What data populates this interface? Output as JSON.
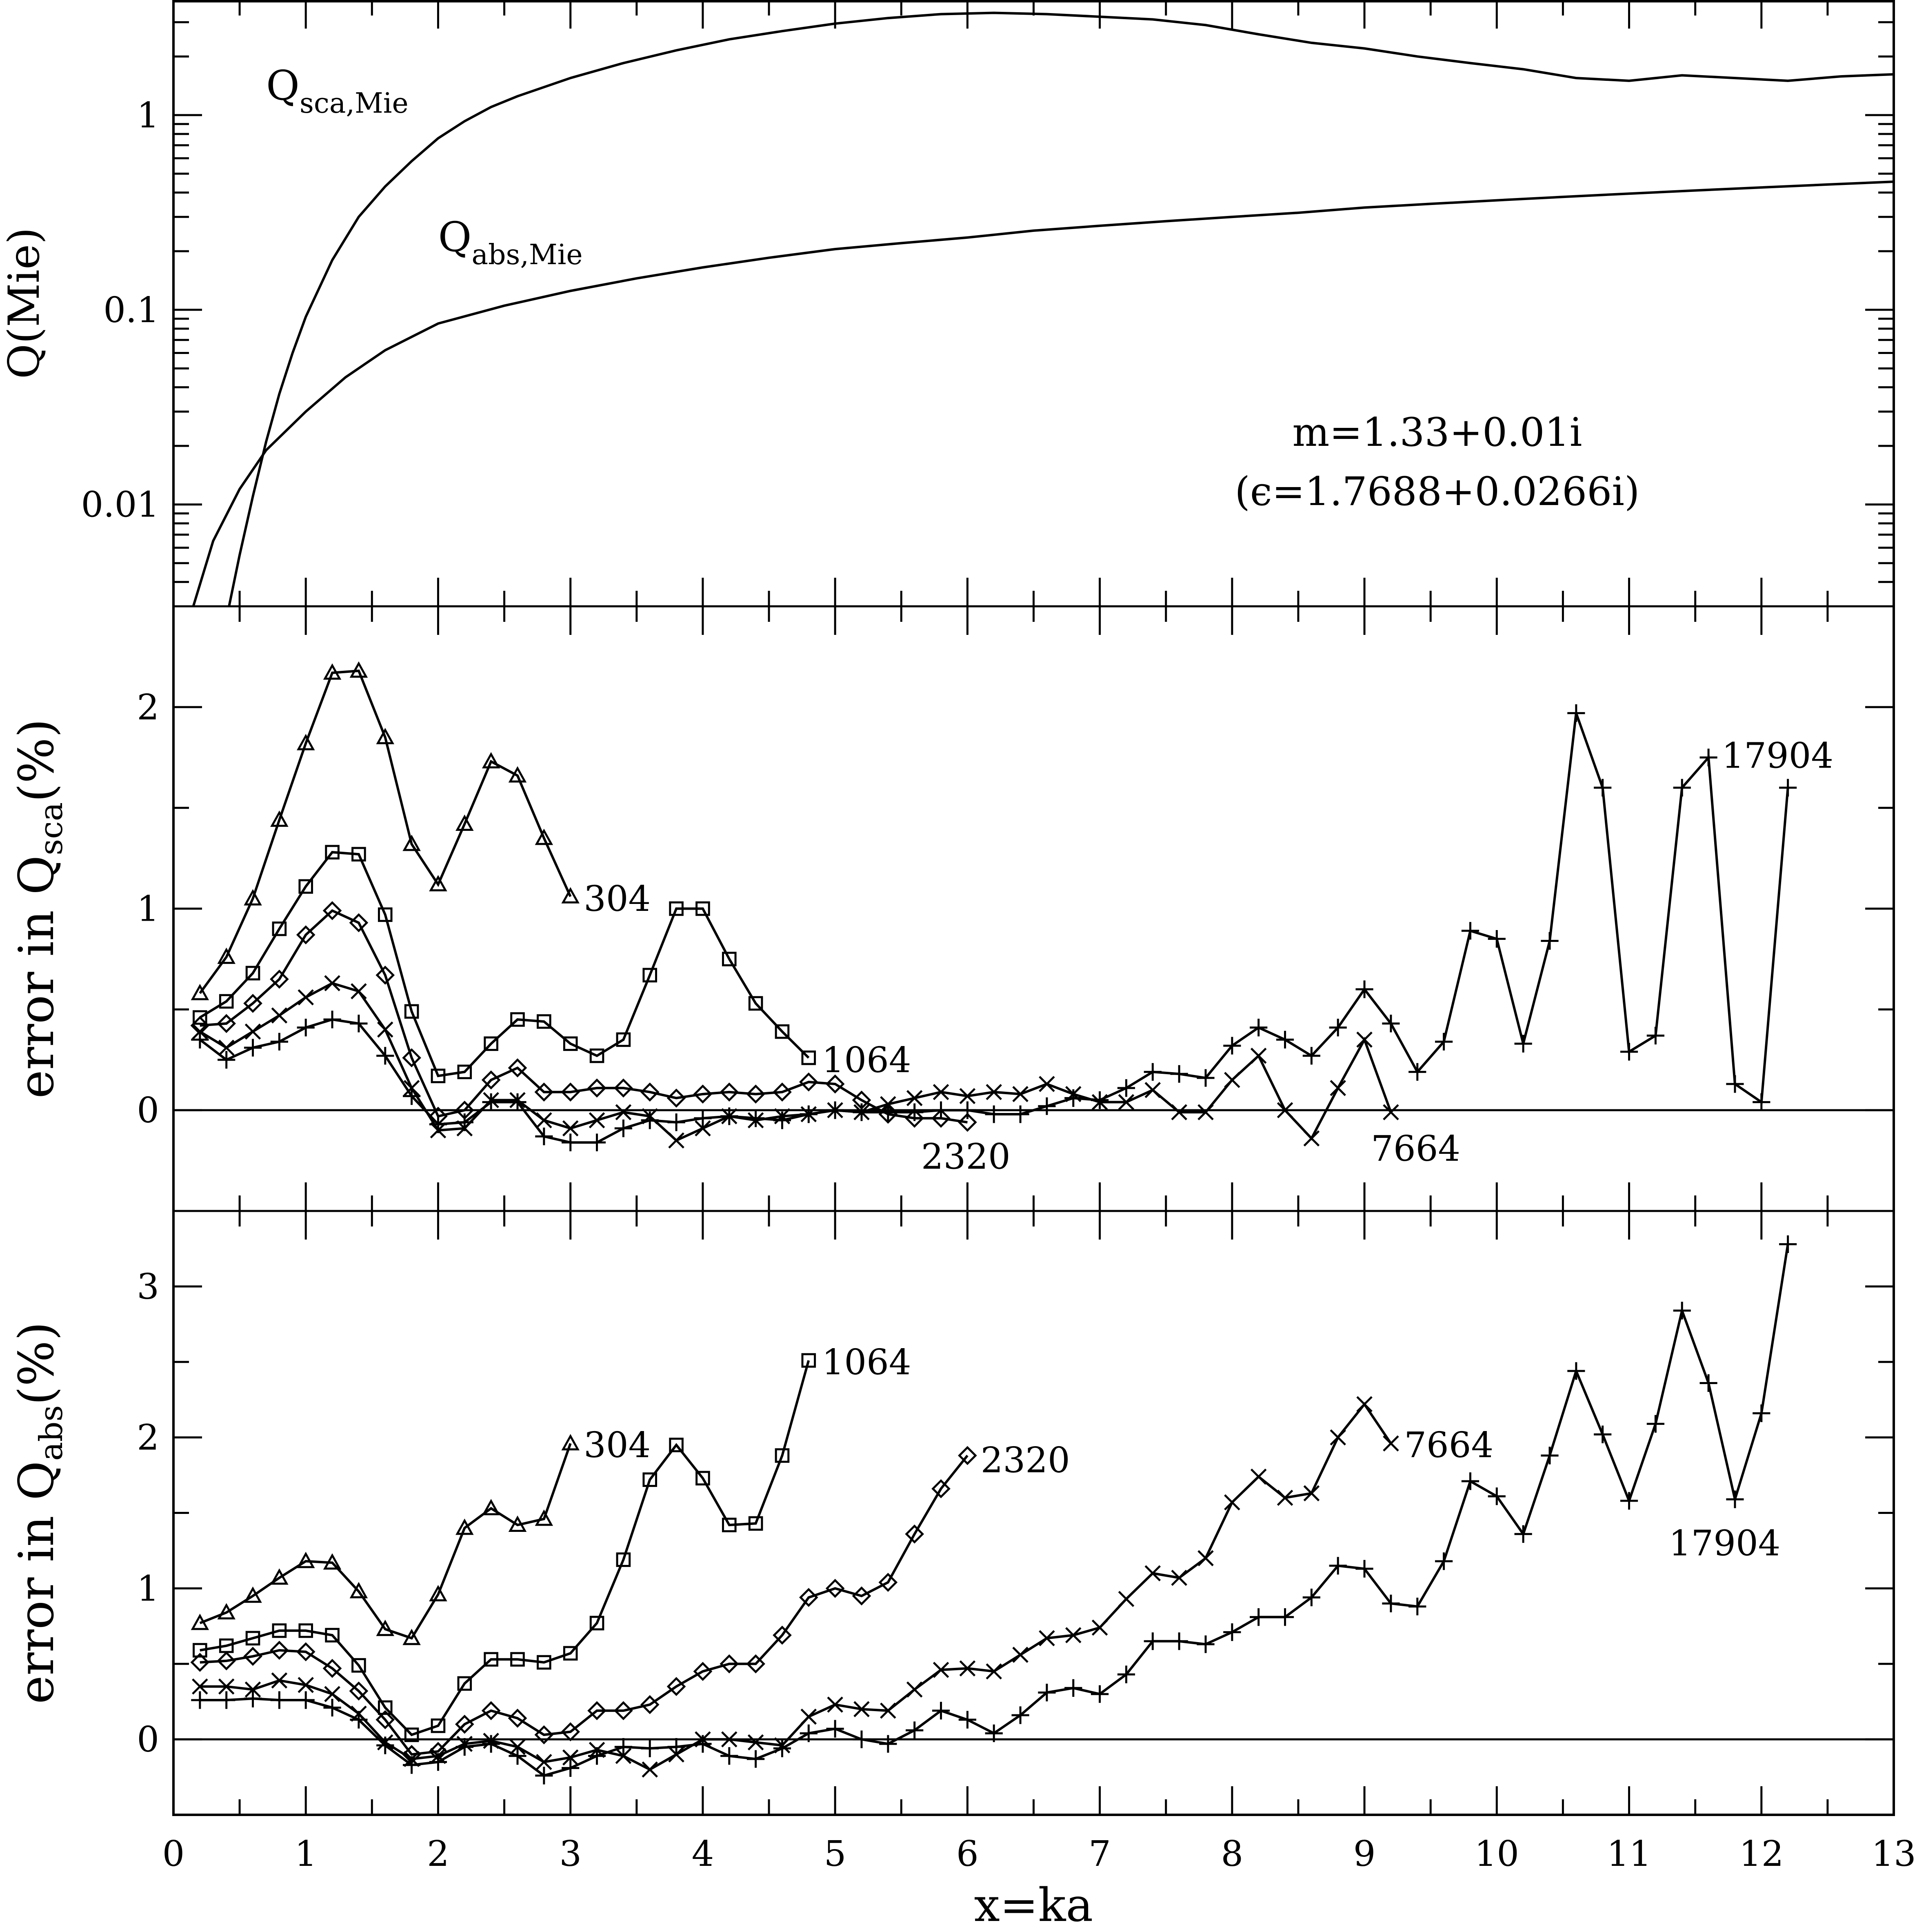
{
  "chart_data": [
    {
      "type": "line",
      "panel": "top",
      "ylabel": "Q(Mie)",
      "yscale": "log",
      "ylim": [
        0.003,
        3.9
      ],
      "xlim": [
        0,
        13
      ],
      "yticks": [
        {
          "value": 1,
          "label": "1"
        },
        {
          "value": 0.1,
          "label": "0.1"
        },
        {
          "value": 0.01,
          "label": "0.01"
        }
      ],
      "annotations": [
        {
          "text": "m=1.33+0.01i"
        },
        {
          "text": "(ϵ=1.7688+0.0266i)"
        }
      ],
      "series": [
        {
          "name": "Q_sca,Mie",
          "label_main": "Q",
          "label_sub": "sca,Mie",
          "x": [
            0.42,
            0.5,
            0.6,
            0.7,
            0.8,
            0.9,
            1.0,
            1.2,
            1.4,
            1.6,
            1.8,
            2.0,
            2.2,
            2.4,
            2.6,
            3.0,
            3.4,
            3.8,
            4.2,
            4.6,
            5.0,
            5.4,
            5.8,
            6.2,
            6.6,
            7.0,
            7.4,
            7.8,
            8.2,
            8.6,
            9.0,
            9.4,
            9.8,
            10.2,
            10.6,
            11.0,
            11.4,
            11.8,
            12.2,
            12.6,
            13.0
          ],
          "y": [
            0.003,
            0.0055,
            0.011,
            0.021,
            0.037,
            0.06,
            0.092,
            0.18,
            0.3,
            0.43,
            0.58,
            0.76,
            0.93,
            1.1,
            1.25,
            1.55,
            1.85,
            2.15,
            2.45,
            2.7,
            2.95,
            3.15,
            3.3,
            3.35,
            3.3,
            3.2,
            3.1,
            2.9,
            2.6,
            2.35,
            2.2,
            2.0,
            1.85,
            1.72,
            1.55,
            1.5,
            1.6,
            1.55,
            1.5,
            1.58,
            1.62
          ]
        },
        {
          "name": "Q_abs,Mie",
          "label_main": "Q",
          "label_sub": "abs,Mie",
          "x": [
            0.15,
            0.3,
            0.5,
            0.7,
            1.0,
            1.3,
            1.6,
            2.0,
            2.5,
            3.0,
            3.5,
            4.0,
            4.5,
            5.0,
            5.5,
            6.0,
            6.5,
            7.0,
            7.5,
            8.0,
            8.5,
            9.0,
            9.5,
            10.0,
            10.5,
            11.0,
            11.5,
            12.0,
            12.5,
            13.0
          ],
          "y": [
            0.003,
            0.0065,
            0.012,
            0.019,
            0.03,
            0.045,
            0.062,
            0.085,
            0.105,
            0.125,
            0.145,
            0.165,
            0.185,
            0.205,
            0.22,
            0.235,
            0.255,
            0.27,
            0.285,
            0.3,
            0.315,
            0.335,
            0.35,
            0.365,
            0.38,
            0.395,
            0.41,
            0.425,
            0.44,
            0.455
          ]
        }
      ]
    },
    {
      "type": "line",
      "panel": "middle",
      "ylabel_main": "error in Q",
      "ylabel_sub": "sca",
      "ylabel_tail": "(%)",
      "ylim": [
        -0.5,
        2.5
      ],
      "xlim": [
        0,
        13
      ],
      "yticks": [
        {
          "value": 0,
          "label": "0"
        },
        {
          "value": 1,
          "label": "1"
        },
        {
          "value": 2,
          "label": "2"
        }
      ],
      "series": [
        {
          "name": "304",
          "marker": "triangle",
          "label_x": 3.1,
          "label_y": 1.05,
          "x": [
            0.2,
            0.4,
            0.6,
            0.8,
            1.0,
            1.2,
            1.4,
            1.6,
            1.8,
            2.0,
            2.2,
            2.4,
            2.6,
            2.8,
            3.0
          ],
          "y": [
            0.58,
            0.76,
            1.05,
            1.44,
            1.82,
            2.17,
            2.18,
            1.85,
            1.32,
            1.12,
            1.42,
            1.73,
            1.66,
            1.35,
            1.06
          ]
        },
        {
          "name": "1064",
          "marker": "square",
          "label_x": 4.9,
          "label_y": 0.25,
          "x": [
            0.2,
            0.4,
            0.6,
            0.8,
            1.0,
            1.2,
            1.4,
            1.6,
            1.8,
            2.0,
            2.2,
            2.4,
            2.6,
            2.8,
            3.0,
            3.2,
            3.4,
            3.6,
            3.8,
            4.0,
            4.2,
            4.4,
            4.6,
            4.8
          ],
          "y": [
            0.46,
            0.54,
            0.68,
            0.9,
            1.11,
            1.28,
            1.27,
            0.97,
            0.49,
            0.17,
            0.19,
            0.33,
            0.45,
            0.44,
            0.33,
            0.27,
            0.35,
            0.67,
            1.0,
            1.0,
            0.75,
            0.53,
            0.39,
            0.26
          ]
        },
        {
          "name": "2320",
          "marker": "diamond",
          "label_x": 5.65,
          "label_y": -0.23,
          "x": [
            0.2,
            0.4,
            0.6,
            0.8,
            1.0,
            1.2,
            1.4,
            1.6,
            1.8,
            2.0,
            2.2,
            2.4,
            2.6,
            2.8,
            3.0,
            3.2,
            3.4,
            3.6,
            3.8,
            4.0,
            4.2,
            4.4,
            4.6,
            4.8,
            5.0,
            5.2,
            5.4,
            5.6,
            5.8,
            6.0
          ],
          "y": [
            0.42,
            0.43,
            0.53,
            0.65,
            0.87,
            0.99,
            0.93,
            0.67,
            0.26,
            -0.03,
            0.0,
            0.15,
            0.21,
            0.09,
            0.09,
            0.11,
            0.11,
            0.09,
            0.06,
            0.08,
            0.09,
            0.08,
            0.09,
            0.14,
            0.13,
            0.05,
            -0.02,
            -0.04,
            -0.04,
            -0.06
          ]
        },
        {
          "name": "7664",
          "marker": "cross",
          "label_x": 9.05,
          "label_y": -0.19,
          "x": [
            0.2,
            0.4,
            0.6,
            0.8,
            1.0,
            1.2,
            1.4,
            1.6,
            1.8,
            2.0,
            2.2,
            2.4,
            2.6,
            2.8,
            3.0,
            3.2,
            3.4,
            3.6,
            3.8,
            4.0,
            4.2,
            4.4,
            4.6,
            4.8,
            5.0,
            5.2,
            5.4,
            5.6,
            5.8,
            6.0,
            6.2,
            6.4,
            6.6,
            6.8,
            7.0,
            7.2,
            7.4,
            7.6,
            7.8,
            8.0,
            8.2,
            8.4,
            8.6,
            8.8,
            9.0,
            9.2
          ],
          "y": [
            0.39,
            0.31,
            0.39,
            0.47,
            0.56,
            0.63,
            0.59,
            0.4,
            0.11,
            -0.1,
            -0.09,
            0.05,
            0.05,
            -0.05,
            -0.09,
            -0.05,
            -0.01,
            -0.03,
            -0.15,
            -0.09,
            -0.03,
            -0.05,
            -0.03,
            -0.02,
            0.0,
            -0.01,
            0.03,
            0.06,
            0.09,
            0.07,
            0.09,
            0.08,
            0.13,
            0.08,
            0.04,
            0.04,
            0.1,
            -0.01,
            -0.01,
            0.15,
            0.27,
            0.0,
            -0.14,
            0.11,
            0.35,
            -0.01
          ]
        },
        {
          "name": "17904",
          "marker": "plus",
          "label_x": 11.7,
          "label_y": 1.76,
          "x": [
            0.2,
            0.4,
            0.6,
            0.8,
            1.0,
            1.2,
            1.4,
            1.6,
            1.8,
            2.0,
            2.2,
            2.4,
            2.6,
            2.8,
            3.0,
            3.2,
            3.4,
            3.6,
            3.8,
            4.0,
            4.2,
            4.4,
            4.6,
            4.8,
            5.0,
            5.2,
            5.4,
            5.6,
            5.8,
            6.0,
            6.2,
            6.4,
            6.6,
            6.8,
            7.0,
            7.2,
            7.4,
            7.6,
            7.8,
            8.0,
            8.2,
            8.4,
            8.6,
            8.8,
            9.0,
            9.2,
            9.4,
            9.6,
            9.8,
            10.0,
            10.2,
            10.4,
            10.6,
            10.8,
            11.0,
            11.2,
            11.4,
            11.6,
            11.8,
            12.0,
            12.2
          ],
          "y": [
            0.35,
            0.25,
            0.31,
            0.34,
            0.41,
            0.45,
            0.43,
            0.27,
            0.07,
            -0.07,
            -0.06,
            0.04,
            0.04,
            -0.13,
            -0.16,
            -0.16,
            -0.09,
            -0.05,
            -0.06,
            -0.04,
            -0.03,
            -0.04,
            -0.05,
            -0.02,
            0.0,
            -0.01,
            -0.01,
            -0.01,
            0.0,
            0.0,
            -0.02,
            -0.02,
            0.02,
            0.06,
            0.05,
            0.11,
            0.19,
            0.18,
            0.16,
            0.32,
            0.41,
            0.35,
            0.27,
            0.41,
            0.6,
            0.43,
            0.19,
            0.34,
            0.89,
            0.85,
            0.33,
            0.84,
            1.97,
            1.6,
            0.29,
            0.37,
            1.6,
            1.75,
            0.13,
            0.04,
            1.6
          ]
        }
      ]
    },
    {
      "type": "line",
      "panel": "bottom",
      "ylabel_main": "error in Q",
      "ylabel_sub": "abs",
      "ylabel_tail": "(%)",
      "xlabel": "x=ka",
      "ylim": [
        -0.5,
        3.5
      ],
      "xlim": [
        0,
        13
      ],
      "xticks": [
        {
          "value": 0,
          "label": "0"
        },
        {
          "value": 1,
          "label": "1"
        },
        {
          "value": 2,
          "label": "2"
        },
        {
          "value": 3,
          "label": "3"
        },
        {
          "value": 4,
          "label": "4"
        },
        {
          "value": 5,
          "label": "5"
        },
        {
          "value": 6,
          "label": "6"
        },
        {
          "value": 7,
          "label": "7"
        },
        {
          "value": 8,
          "label": "8"
        },
        {
          "value": 9,
          "label": "9"
        },
        {
          "value": 10,
          "label": "10"
        },
        {
          "value": 11,
          "label": "11"
        },
        {
          "value": 12,
          "label": "12"
        },
        {
          "value": 13,
          "label": "13"
        }
      ],
      "yticks": [
        {
          "value": 0,
          "label": "0"
        },
        {
          "value": 1,
          "label": "1"
        },
        {
          "value": 2,
          "label": "2"
        },
        {
          "value": 3,
          "label": "3"
        }
      ],
      "series": [
        {
          "name": "304",
          "marker": "triangle",
          "label_x": 3.1,
          "label_y": 1.95,
          "x": [
            0.2,
            0.4,
            0.6,
            0.8,
            1.0,
            1.2,
            1.4,
            1.6,
            1.8,
            2.0,
            2.2,
            2.4,
            2.6,
            2.8,
            3.0
          ],
          "y": [
            0.77,
            0.84,
            0.95,
            1.07,
            1.18,
            1.17,
            0.98,
            0.73,
            0.67,
            0.96,
            1.4,
            1.53,
            1.42,
            1.46,
            1.96
          ]
        },
        {
          "name": "1064",
          "marker": "square",
          "label_x": 4.9,
          "label_y": 2.5,
          "x": [
            0.2,
            0.4,
            0.6,
            0.8,
            1.0,
            1.2,
            1.4,
            1.6,
            1.8,
            2.0,
            2.2,
            2.4,
            2.6,
            2.8,
            3.0,
            3.2,
            3.4,
            3.6,
            3.8,
            4.0,
            4.2,
            4.4,
            4.6,
            4.8
          ],
          "y": [
            0.59,
            0.62,
            0.67,
            0.72,
            0.72,
            0.69,
            0.49,
            0.21,
            0.03,
            0.09,
            0.37,
            0.53,
            0.53,
            0.51,
            0.57,
            0.77,
            1.19,
            1.72,
            1.95,
            1.73,
            1.42,
            1.43,
            1.88,
            2.51
          ]
        },
        {
          "name": "2320",
          "marker": "diamond",
          "label_x": 6.1,
          "label_y": 1.85,
          "x": [
            0.2,
            0.4,
            0.6,
            0.8,
            1.0,
            1.2,
            1.4,
            1.6,
            1.8,
            2.0,
            2.2,
            2.4,
            2.6,
            2.8,
            3.0,
            3.2,
            3.4,
            3.6,
            3.8,
            4.0,
            4.2,
            4.4,
            4.6,
            4.8,
            5.0,
            5.2,
            5.4,
            5.6,
            5.8,
            6.0
          ],
          "y": [
            0.51,
            0.52,
            0.55,
            0.59,
            0.58,
            0.47,
            0.32,
            0.13,
            -0.1,
            -0.08,
            0.1,
            0.19,
            0.14,
            0.03,
            0.05,
            0.19,
            0.19,
            0.23,
            0.35,
            0.45,
            0.5,
            0.5,
            0.69,
            0.94,
            1.0,
            0.95,
            1.04,
            1.36,
            1.66,
            1.88
          ]
        },
        {
          "name": "7664",
          "marker": "cross",
          "label_x": 9.3,
          "label_y": 1.95,
          "x": [
            0.2,
            0.4,
            0.6,
            0.8,
            1.0,
            1.2,
            1.4,
            1.6,
            1.8,
            2.0,
            2.2,
            2.4,
            2.6,
            2.8,
            3.0,
            3.2,
            3.4,
            3.6,
            3.8,
            4.0,
            4.2,
            4.4,
            4.6,
            4.8,
            5.0,
            5.2,
            5.4,
            5.6,
            5.8,
            6.0,
            6.2,
            6.4,
            6.6,
            6.8,
            7.0,
            7.2,
            7.4,
            7.6,
            7.8,
            8.0,
            8.2,
            8.4,
            8.6,
            8.8,
            9.0,
            9.2
          ],
          "y": [
            0.35,
            0.35,
            0.33,
            0.39,
            0.36,
            0.3,
            0.17,
            -0.02,
            -0.13,
            -0.11,
            -0.03,
            -0.01,
            -0.05,
            -0.15,
            -0.12,
            -0.07,
            -0.11,
            -0.2,
            -0.1,
            0.0,
            0.0,
            -0.02,
            -0.04,
            0.15,
            0.23,
            0.2,
            0.19,
            0.33,
            0.46,
            0.47,
            0.45,
            0.56,
            0.67,
            0.69,
            0.74,
            0.93,
            1.1,
            1.07,
            1.2,
            1.57,
            1.74,
            1.6,
            1.63,
            2.0,
            2.22,
            1.96
          ]
        },
        {
          "name": "17904",
          "marker": "plus",
          "label_x": 11.3,
          "label_y": 1.3,
          "x": [
            0.2,
            0.4,
            0.6,
            0.8,
            1.0,
            1.2,
            1.4,
            1.6,
            1.8,
            2.0,
            2.2,
            2.4,
            2.6,
            2.8,
            3.0,
            3.2,
            3.4,
            3.6,
            3.8,
            4.0,
            4.2,
            4.4,
            4.6,
            4.8,
            5.0,
            5.2,
            5.4,
            5.6,
            5.8,
            6.0,
            6.2,
            6.4,
            6.6,
            6.8,
            7.0,
            7.2,
            7.4,
            7.6,
            7.8,
            8.0,
            8.2,
            8.4,
            8.6,
            8.8,
            9.0,
            9.2,
            9.4,
            9.6,
            9.8,
            10.0,
            10.2,
            10.4,
            10.6,
            10.8,
            11.0,
            11.2,
            11.4,
            11.6,
            11.8,
            12.0,
            12.2
          ],
          "y": [
            0.26,
            0.26,
            0.27,
            0.26,
            0.26,
            0.21,
            0.13,
            -0.04,
            -0.17,
            -0.15,
            -0.05,
            -0.03,
            -0.11,
            -0.24,
            -0.19,
            -0.11,
            -0.05,
            -0.06,
            -0.05,
            -0.03,
            -0.11,
            -0.13,
            -0.06,
            0.04,
            0.07,
            0.0,
            -0.03,
            0.06,
            0.19,
            0.13,
            0.04,
            0.16,
            0.31,
            0.34,
            0.3,
            0.43,
            0.65,
            0.65,
            0.63,
            0.71,
            0.81,
            0.81,
            0.94,
            1.15,
            1.13,
            0.9,
            0.88,
            1.18,
            1.71,
            1.61,
            1.36,
            1.88,
            2.44,
            2.02,
            1.58,
            2.09,
            2.84,
            2.36,
            1.59,
            2.16,
            3.28
          ]
        }
      ]
    }
  ]
}
